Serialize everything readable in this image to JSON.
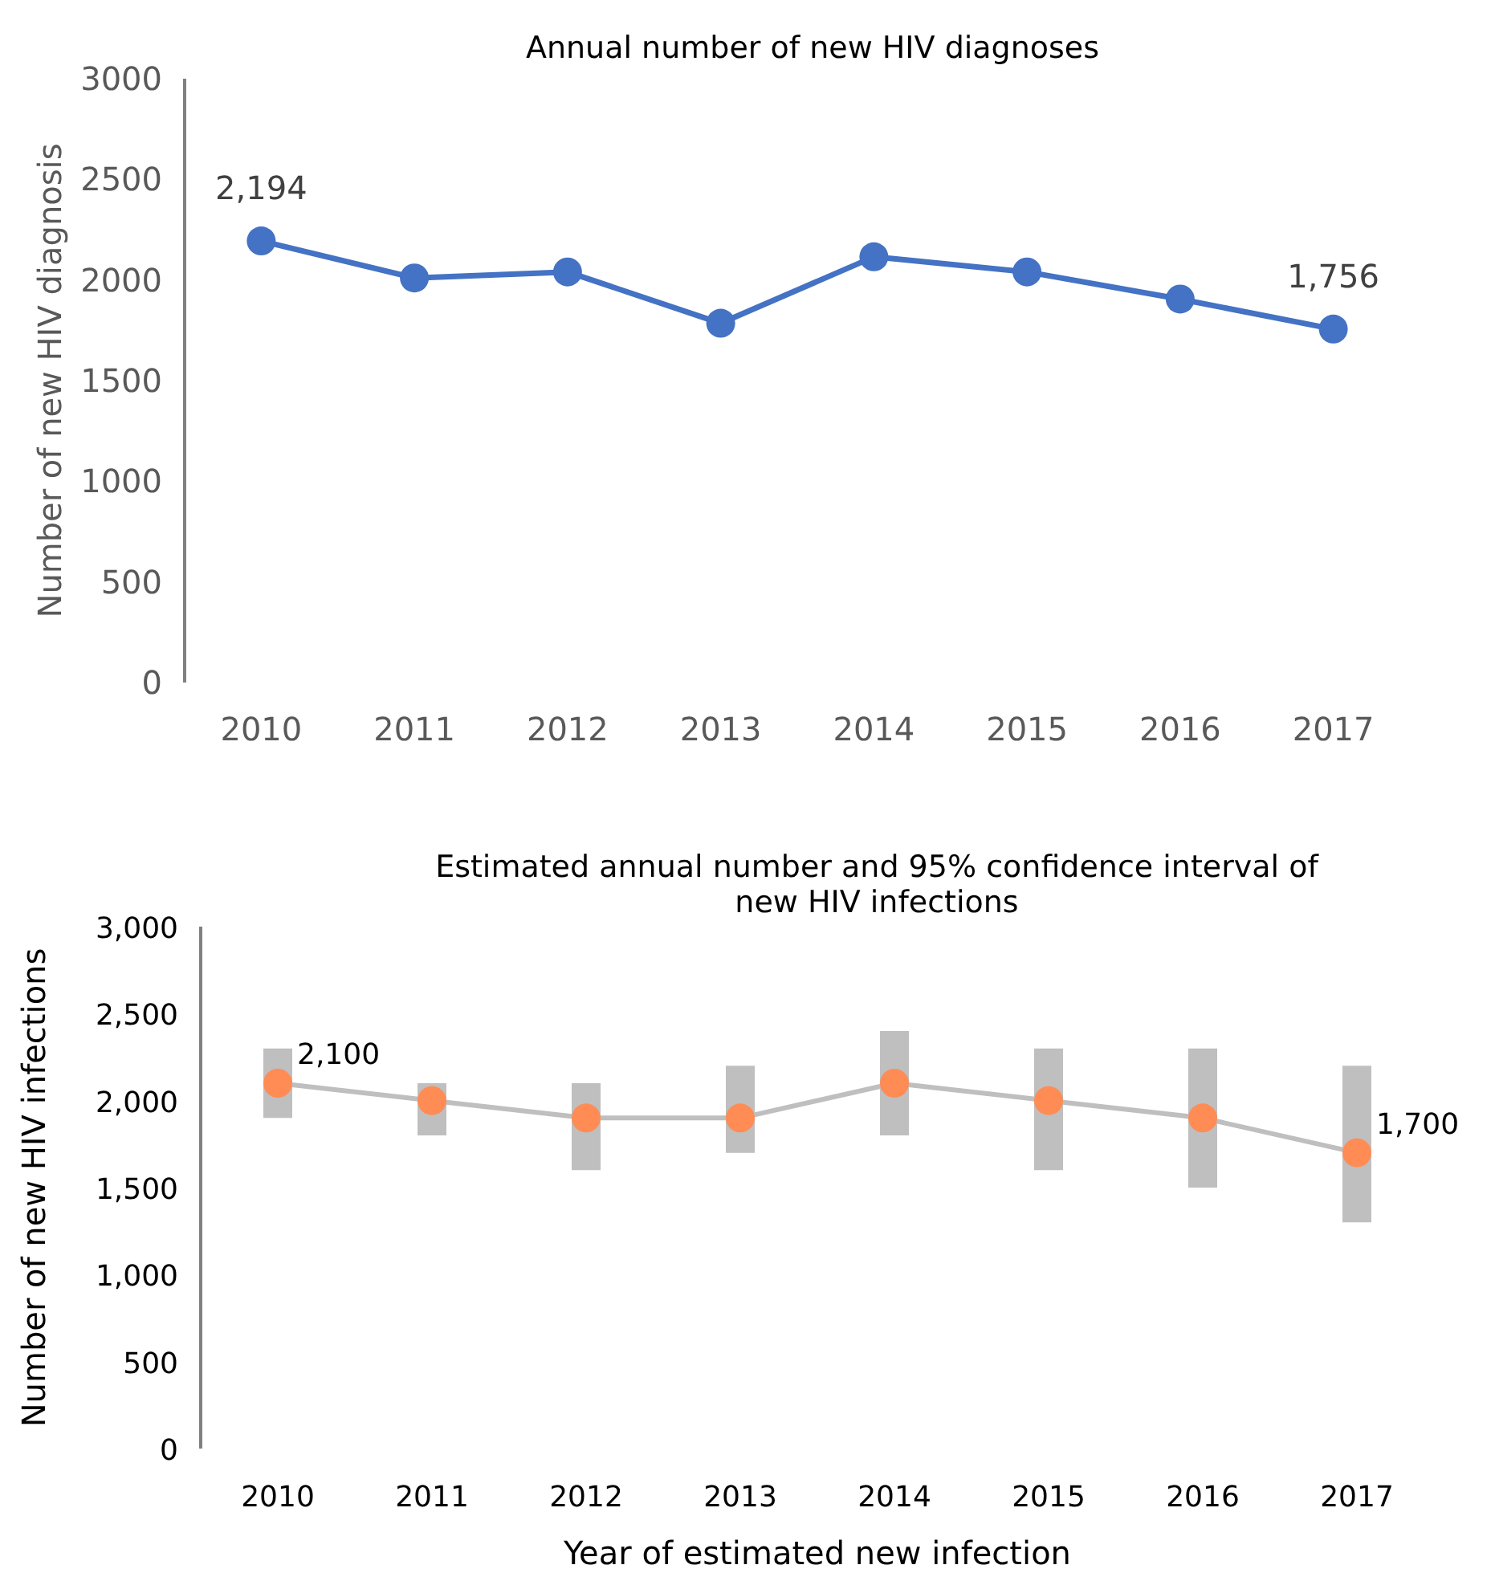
{
  "chart_data": [
    {
      "type": "line",
      "title": "Annual number of new HIV diagnoses",
      "ylabel": "Number of new HIV diagnosis",
      "categories": [
        "2010",
        "2011",
        "2012",
        "2013",
        "2014",
        "2015",
        "2016",
        "2017"
      ],
      "series": [
        {
          "color": "#4472c4",
          "values": [
            2194,
            2010,
            2040,
            1785,
            2115,
            2040,
            1905,
            1756
          ],
          "value_labels": [
            "2,194",
            null,
            null,
            null,
            null,
            null,
            null,
            "1,756"
          ]
        }
      ],
      "ylim": [
        0,
        3000
      ],
      "yticks": [
        0,
        500,
        1000,
        1500,
        2000,
        2500,
        3000
      ],
      "marker": "circle",
      "grid": false
    },
    {
      "type": "line",
      "title": "Estimated annual number and 95% confidence interval of new HIV infections",
      "ylabel": "Number of new HIV infections",
      "xlabel": "Year of estimated new infection",
      "categories": [
        "2010",
        "2011",
        "2012",
        "2013",
        "2014",
        "2015",
        "2016",
        "2017"
      ],
      "series": [
        {
          "color": "#ff8c55",
          "values": [
            2100,
            2000,
            1900,
            1900,
            2100,
            2000,
            1900,
            1700
          ],
          "value_labels": [
            "2,100",
            null,
            null,
            null,
            null,
            null,
            null,
            "1,700"
          ],
          "errors": [
            [
              1900,
              2300
            ],
            [
              1800,
              2100
            ],
            [
              1600,
              2100
            ],
            [
              1700,
              2200
            ],
            [
              1800,
              2400
            ],
            [
              1600,
              2300
            ],
            [
              1500,
              2300
            ],
            [
              1300,
              2200
            ]
          ]
        }
      ],
      "ylim": [
        0,
        3000
      ],
      "yticks": [
        {
          "value": 0,
          "label": "0"
        },
        {
          "value": 500,
          "label": "500"
        },
        {
          "value": 1000,
          "label": "1,000"
        },
        {
          "value": 1500,
          "label": "1,500"
        },
        {
          "value": 2000,
          "label": "2,000"
        },
        {
          "value": 2500,
          "label": "2,500"
        },
        {
          "value": 3000,
          "label": "3,000"
        }
      ],
      "marker": "circle",
      "grid": false
    }
  ]
}
